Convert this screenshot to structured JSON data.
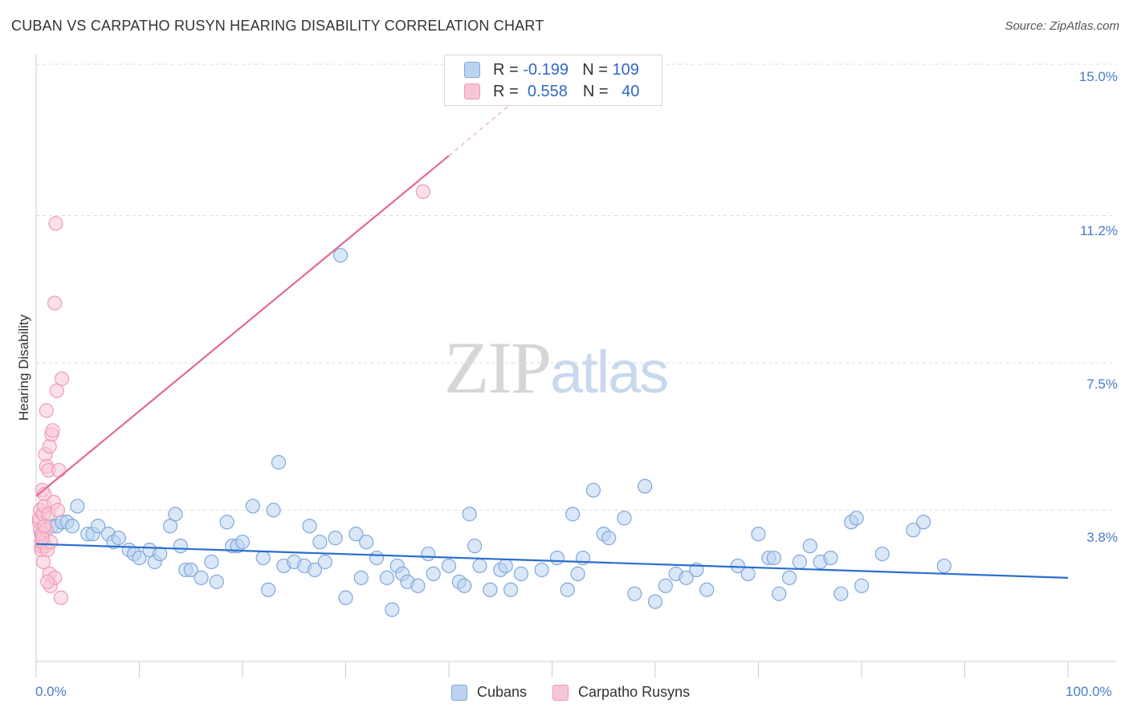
{
  "title": "CUBAN VS CARPATHO RUSYN HEARING DISABILITY CORRELATION CHART",
  "source": "Source: ZipAtlas.com",
  "watermark": {
    "zip": "ZIP",
    "atlas": "atlas"
  },
  "colors": {
    "blue": "#7fa8dc",
    "blue_fill": "#bcd3f0",
    "pink": "#f09ab5",
    "pink_fill": "#f7c6d5",
    "blue_line": "#2a6fcf",
    "pink_line": "#e26a90",
    "grid": "#dddddd"
  },
  "legend_top": {
    "rows": [
      {
        "r_label": "R =",
        "r_value": "-0.199",
        "n_label": "N =",
        "n_value": "109"
      },
      {
        "r_label": "R =",
        "r_value": "0.558",
        "n_label": "N =",
        "n_value": "40"
      }
    ]
  },
  "legend_bottom": [
    "Cubans",
    "Carpatho Rusyns"
  ],
  "chart_data": {
    "type": "scatter",
    "title": "CUBAN VS CARPATHO RUSYN HEARING DISABILITY CORRELATION CHART",
    "xlabel": "",
    "ylabel": "Hearing Disability",
    "xlim": [
      0,
      100
    ],
    "ylim": [
      0,
      15
    ],
    "x_tick_labels": [
      "0.0%",
      "100.0%"
    ],
    "y_tick_labels": [
      "15.0%",
      "11.2%",
      "7.5%",
      "3.8%"
    ],
    "y_ticks": [
      15.0,
      11.2,
      7.5,
      3.8
    ],
    "series": [
      {
        "name": "Cubans",
        "trend": {
          "x": [
            0,
            100
          ],
          "y": [
            2.95,
            2.1
          ]
        },
        "points": [
          [
            0.5,
            3.2
          ],
          [
            1,
            3.3
          ],
          [
            1.5,
            3.4
          ],
          [
            2,
            3.4
          ],
          [
            2.5,
            3.5
          ],
          [
            3,
            3.5
          ],
          [
            3.5,
            3.4
          ],
          [
            4,
            3.9
          ],
          [
            5,
            3.2
          ],
          [
            5.5,
            3.2
          ],
          [
            6,
            3.4
          ],
          [
            7,
            3.2
          ],
          [
            7.5,
            3.0
          ],
          [
            8,
            3.1
          ],
          [
            9,
            2.8
          ],
          [
            9.5,
            2.7
          ],
          [
            10,
            2.6
          ],
          [
            11,
            2.8
          ],
          [
            11.5,
            2.5
          ],
          [
            12,
            2.7
          ],
          [
            13,
            3.4
          ],
          [
            13.5,
            3.7
          ],
          [
            14,
            2.9
          ],
          [
            14.5,
            2.3
          ],
          [
            15,
            2.3
          ],
          [
            16,
            2.1
          ],
          [
            17,
            2.5
          ],
          [
            17.5,
            2.0
          ],
          [
            18.5,
            3.5
          ],
          [
            19,
            2.9
          ],
          [
            19.5,
            2.9
          ],
          [
            20,
            3.0
          ],
          [
            21,
            3.9
          ],
          [
            22,
            2.6
          ],
          [
            22.5,
            1.8
          ],
          [
            23,
            3.8
          ],
          [
            24,
            2.4
          ],
          [
            25,
            2.5
          ],
          [
            26,
            2.4
          ],
          [
            26.5,
            3.4
          ],
          [
            27,
            2.3
          ],
          [
            27.5,
            3.0
          ],
          [
            28,
            2.5
          ],
          [
            29,
            3.1
          ],
          [
            23.5,
            5.0
          ],
          [
            29.5,
            10.2
          ],
          [
            30,
            1.6
          ],
          [
            31,
            3.2
          ],
          [
            31.5,
            2.1
          ],
          [
            32,
            3.0
          ],
          [
            33,
            2.6
          ],
          [
            34,
            2.1
          ],
          [
            34.5,
            1.3
          ],
          [
            35,
            2.4
          ],
          [
            35.5,
            2.2
          ],
          [
            36,
            2.0
          ],
          [
            37,
            1.9
          ],
          [
            38,
            2.7
          ],
          [
            38.5,
            2.2
          ],
          [
            40,
            2.4
          ],
          [
            41,
            2.0
          ],
          [
            41.5,
            1.9
          ],
          [
            42,
            3.7
          ],
          [
            42.5,
            2.9
          ],
          [
            43,
            2.4
          ],
          [
            44,
            1.8
          ],
          [
            45,
            2.3
          ],
          [
            45.5,
            2.4
          ],
          [
            46,
            1.8
          ],
          [
            47,
            2.2
          ],
          [
            49,
            2.3
          ],
          [
            50.5,
            2.6
          ],
          [
            51.5,
            1.8
          ],
          [
            52,
            3.7
          ],
          [
            52.5,
            2.2
          ],
          [
            53,
            2.6
          ],
          [
            54,
            4.3
          ],
          [
            55,
            3.2
          ],
          [
            55.5,
            3.1
          ],
          [
            57,
            3.6
          ],
          [
            58,
            1.7
          ],
          [
            59,
            4.4
          ],
          [
            60,
            1.5
          ],
          [
            61,
            1.9
          ],
          [
            62,
            2.2
          ],
          [
            63,
            2.1
          ],
          [
            64,
            2.3
          ],
          [
            65,
            1.8
          ],
          [
            68,
            2.4
          ],
          [
            69,
            2.2
          ],
          [
            70,
            3.2
          ],
          [
            71,
            2.6
          ],
          [
            71.5,
            2.6
          ],
          [
            72,
            1.7
          ],
          [
            73,
            2.1
          ],
          [
            74,
            2.5
          ],
          [
            75,
            2.9
          ],
          [
            76,
            2.5
          ],
          [
            77,
            2.6
          ],
          [
            79,
            3.5
          ],
          [
            78,
            1.7
          ],
          [
            79.5,
            3.6
          ],
          [
            80,
            1.9
          ],
          [
            82,
            2.7
          ],
          [
            85,
            3.3
          ],
          [
            86,
            3.5
          ],
          [
            88,
            2.4
          ]
        ]
      },
      {
        "name": "Carpatho Rusyns",
        "trend": {
          "x": [
            0,
            40
          ],
          "y": [
            4.15,
            12.7
          ]
        },
        "trend_dashed": {
          "x": [
            40,
            46
          ],
          "y": [
            12.7,
            14.0
          ]
        },
        "points": [
          [
            0.3,
            3.5
          ],
          [
            0.3,
            3.6
          ],
          [
            0.4,
            3.8
          ],
          [
            0.4,
            3.3
          ],
          [
            0.5,
            2.8
          ],
          [
            0.5,
            2.9
          ],
          [
            0.5,
            3.0
          ],
          [
            0.6,
            4.3
          ],
          [
            0.6,
            3.2
          ],
          [
            0.7,
            3.7
          ],
          [
            0.7,
            2.5
          ],
          [
            0.8,
            4.2
          ],
          [
            0.8,
            3.9
          ],
          [
            0.9,
            5.2
          ],
          [
            0.9,
            2.9
          ],
          [
            1.0,
            6.3
          ],
          [
            1.0,
            4.9
          ],
          [
            1.0,
            3.3
          ],
          [
            1.1,
            2.8
          ],
          [
            1.2,
            4.8
          ],
          [
            1.2,
            3.7
          ],
          [
            1.3,
            5.4
          ],
          [
            1.3,
            2.2
          ],
          [
            1.4,
            3.0
          ],
          [
            1.4,
            1.9
          ],
          [
            1.5,
            5.7
          ],
          [
            1.6,
            5.8
          ],
          [
            1.7,
            4.0
          ],
          [
            1.8,
            9.0
          ],
          [
            1.8,
            2.1
          ],
          [
            1.9,
            11.0
          ],
          [
            2.0,
            6.8
          ],
          [
            2.1,
            3.8
          ],
          [
            2.2,
            4.8
          ],
          [
            2.4,
            1.6
          ],
          [
            2.5,
            7.1
          ],
          [
            0.6,
            3.1
          ],
          [
            1.1,
            2.0
          ],
          [
            0.8,
            3.4
          ],
          [
            37.5,
            11.8
          ]
        ]
      }
    ]
  }
}
